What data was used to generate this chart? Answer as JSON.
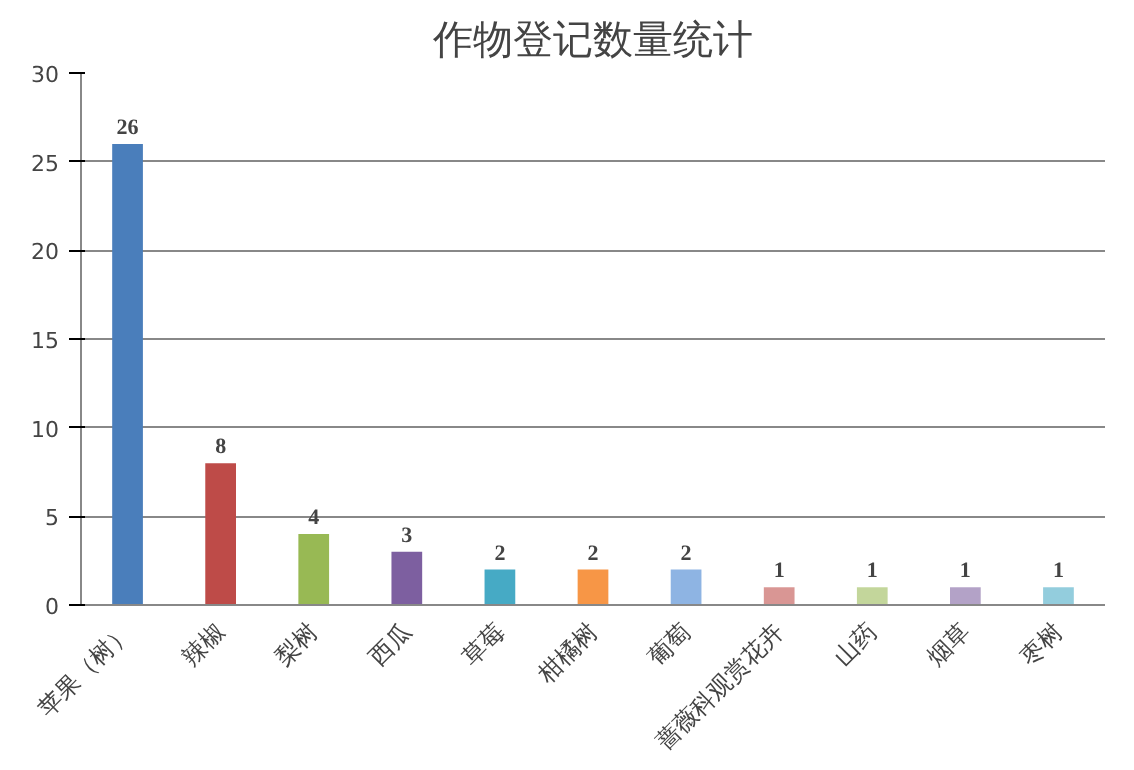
{
  "chart_data": {
    "type": "bar",
    "title": "作物登记数量统计",
    "categories": [
      "苹果（树）",
      "辣椒",
      "梨树",
      "西瓜",
      "草莓",
      "柑橘树",
      "葡萄",
      "蔷薇科观赏花卉",
      "山药",
      "烟草",
      "枣树"
    ],
    "values": [
      26,
      8,
      4,
      3,
      2,
      2,
      2,
      1,
      1,
      1,
      1
    ],
    "colors": [
      "#4a7ebb",
      "#be4b48",
      "#98b954",
      "#7d5fa0",
      "#46aac5",
      "#f79646",
      "#8eb4e3",
      "#d99694",
      "#c3d69b",
      "#b3a2c7",
      "#93cddd"
    ],
    "ylim": [
      0,
      30
    ],
    "yticks": [
      0,
      5,
      10,
      15,
      20,
      25,
      30
    ],
    "grid": "y",
    "data_labels": true
  }
}
